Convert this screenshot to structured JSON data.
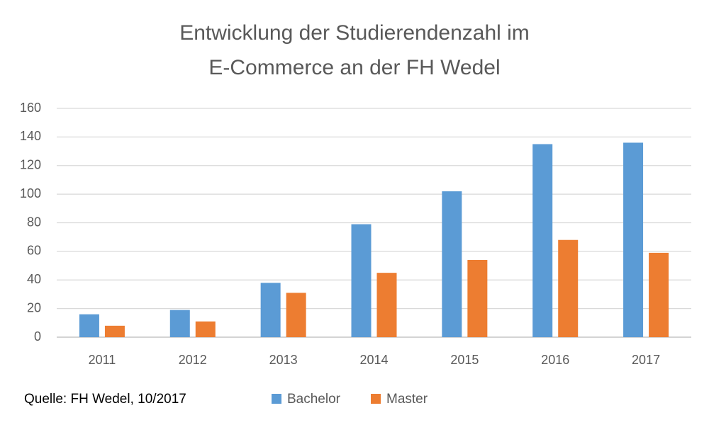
{
  "chart_data": {
    "type": "bar",
    "title": [
      "Entwicklung der Studierendenzahl im",
      "E-Commerce an der FH Wedel"
    ],
    "source": "Quelle: FH Wedel, 10/2017",
    "categories": [
      "2011",
      "2012",
      "2013",
      "2014",
      "2015",
      "2016",
      "2017"
    ],
    "series": [
      {
        "name": "Bachelor",
        "color": "#5b9bd5",
        "values": [
          16,
          19,
          38,
          79,
          102,
          135,
          136
        ]
      },
      {
        "name": "Master",
        "color": "#ed7d31",
        "values": [
          8,
          11,
          31,
          45,
          54,
          68,
          59
        ]
      }
    ],
    "ylim": [
      0,
      160
    ],
    "yticks": [
      0,
      20,
      40,
      60,
      80,
      100,
      120,
      140,
      160
    ],
    "grid": true,
    "legend": "bottom"
  }
}
